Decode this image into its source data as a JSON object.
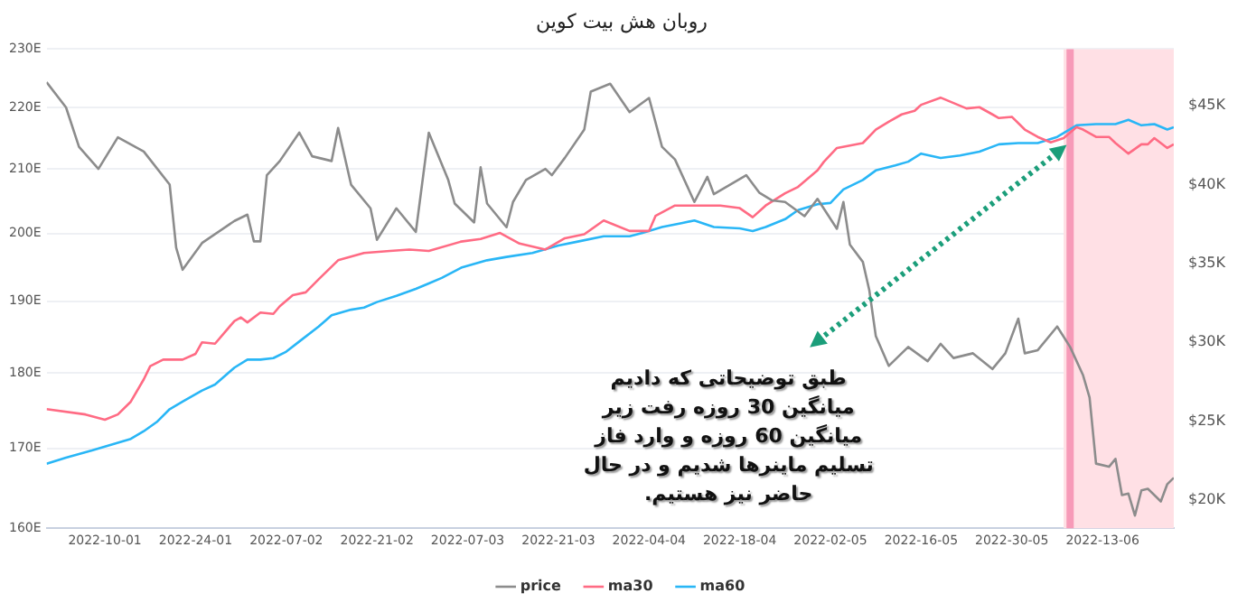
{
  "chart_data": {
    "type": "line",
    "title": "روبان هش بیت کوین",
    "xlim": [
      "2022-01-01",
      "2022-06-24"
    ],
    "xticks": [
      {
        "value": "2022-01-10",
        "label": "2022-10-01"
      },
      {
        "value": "2022-01-24",
        "label": "2022-24-01"
      },
      {
        "value": "2022-02-07",
        "label": "2022-07-02"
      },
      {
        "value": "2022-02-21",
        "label": "2022-21-02"
      },
      {
        "value": "2022-03-07",
        "label": "2022-07-03"
      },
      {
        "value": "2022-03-21",
        "label": "2022-21-03"
      },
      {
        "value": "2022-04-04",
        "label": "2022-04-04"
      },
      {
        "value": "2022-04-18",
        "label": "2022-18-04"
      },
      {
        "value": "2022-05-02",
        "label": "2022-02-05"
      },
      {
        "value": "2022-05-16",
        "label": "2022-16-05"
      },
      {
        "value": "2022-05-30",
        "label": "2022-30-05"
      },
      {
        "value": "2022-06-13",
        "label": "2022-13-06"
      }
    ],
    "ylim": [
      160,
      230
    ],
    "yticks": [
      {
        "value": 160,
        "label": "160E"
      },
      {
        "value": 170,
        "label": "170E"
      },
      {
        "value": 180,
        "label": "180E"
      },
      {
        "value": 190,
        "label": "190E"
      },
      {
        "value": 200,
        "label": "200E"
      },
      {
        "value": 210,
        "label": "210E"
      },
      {
        "value": 220,
        "label": "220E"
      },
      {
        "value": 230,
        "label": "230E"
      }
    ],
    "y2lim": [
      18200,
      48600
    ],
    "y2ticks": [
      {
        "value": 20000,
        "label": "$20K"
      },
      {
        "value": 25000,
        "label": "$25K"
      },
      {
        "value": 30000,
        "label": "$30K"
      },
      {
        "value": 35000,
        "label": "$35K"
      },
      {
        "value": 40000,
        "label": "$40K"
      },
      {
        "value": 45000,
        "label": "$45K"
      }
    ],
    "log": "y",
    "grid": "y",
    "legend": "bottom",
    "marker": "none",
    "line_style": "solid",
    "series": [
      {
        "name": "price",
        "axis": "y2",
        "color": "#8c8c8c",
        "x": [
          "2022-01-01",
          "2022-01-04",
          "2022-01-06",
          "2022-01-09",
          "2022-01-12",
          "2022-01-16",
          "2022-01-20",
          "2022-01-21",
          "2022-01-22",
          "2022-01-25",
          "2022-01-30",
          "2022-02-01",
          "2022-02-02",
          "2022-02-03",
          "2022-02-04",
          "2022-02-06",
          "2022-02-09",
          "2022-02-11",
          "2022-02-14",
          "2022-02-15",
          "2022-02-17",
          "2022-02-20",
          "2022-02-21",
          "2022-02-24",
          "2022-02-27",
          "2022-03-01",
          "2022-03-04",
          "2022-03-05",
          "2022-03-08",
          "2022-03-09",
          "2022-03-10",
          "2022-03-13",
          "2022-03-14",
          "2022-03-16",
          "2022-03-19",
          "2022-03-20",
          "2022-03-22",
          "2022-03-25",
          "2022-03-26",
          "2022-03-29",
          "2022-04-01",
          "2022-04-04",
          "2022-04-06",
          "2022-04-08",
          "2022-04-11",
          "2022-04-13",
          "2022-04-14",
          "2022-04-19",
          "2022-04-21",
          "2022-04-23",
          "2022-04-25",
          "2022-04-28",
          "2022-04-30",
          "2022-05-03",
          "2022-05-04",
          "2022-05-05",
          "2022-05-07",
          "2022-05-08",
          "2022-05-09",
          "2022-05-11",
          "2022-05-14",
          "2022-05-17",
          "2022-05-19",
          "2022-05-21",
          "2022-05-24",
          "2022-05-27",
          "2022-05-29",
          "2022-05-31",
          "2022-06-01",
          "2022-06-03",
          "2022-06-06",
          "2022-06-08",
          "2022-06-10",
          "2022-06-11",
          "2022-06-12",
          "2022-06-14",
          "2022-06-15",
          "2022-06-16",
          "2022-06-17",
          "2022-06-18",
          "2022-06-19",
          "2022-06-20",
          "2022-06-22",
          "2022-06-23",
          "2022-06-24"
        ],
        "values": [
          46500,
          44900,
          42400,
          41000,
          43000,
          42100,
          40000,
          36000,
          34600,
          36300,
          37700,
          38100,
          36400,
          36400,
          40600,
          41500,
          43300,
          41800,
          41500,
          43600,
          40000,
          38500,
          36500,
          38500,
          37000,
          43300,
          40300,
          38800,
          37600,
          41100,
          38800,
          37300,
          38900,
          40300,
          41000,
          40600,
          41700,
          43500,
          45900,
          46400,
          44600,
          45500,
          42400,
          41600,
          38900,
          40500,
          39400,
          40600,
          39500,
          39000,
          38900,
          38000,
          39100,
          37200,
          38900,
          36200,
          35100,
          33300,
          30400,
          28500,
          29700,
          28800,
          29900,
          29000,
          29300,
          28300,
          29300,
          31500,
          29300,
          29500,
          31000,
          29700,
          27900,
          26500,
          22300,
          22100,
          22600,
          20300,
          20400,
          19000,
          20600,
          20700,
          19900,
          21000,
          21400
        ]
      },
      {
        "name": "ma30",
        "color": "#ff6b84",
        "x": [
          "2022-01-01",
          "2022-01-07",
          "2022-01-10",
          "2022-01-12",
          "2022-01-14",
          "2022-01-16",
          "2022-01-17",
          "2022-01-19",
          "2022-01-22",
          "2022-01-24",
          "2022-01-25",
          "2022-01-27",
          "2022-01-30",
          "2022-01-31",
          "2022-02-01",
          "2022-02-03",
          "2022-02-05",
          "2022-02-06",
          "2022-02-08",
          "2022-02-10",
          "2022-02-12",
          "2022-02-15",
          "2022-02-19",
          "2022-02-23",
          "2022-02-26",
          "2022-03-01",
          "2022-03-06",
          "2022-03-09",
          "2022-03-12",
          "2022-03-15",
          "2022-03-19",
          "2022-03-22",
          "2022-03-25",
          "2022-03-28",
          "2022-04-01",
          "2022-04-04",
          "2022-04-05",
          "2022-04-08",
          "2022-04-11",
          "2022-04-15",
          "2022-04-18",
          "2022-04-20",
          "2022-04-22",
          "2022-04-25",
          "2022-04-27",
          "2022-04-30",
          "2022-05-01",
          "2022-05-03",
          "2022-05-05",
          "2022-05-07",
          "2022-05-09",
          "2022-05-11",
          "2022-05-13",
          "2022-05-15",
          "2022-05-16",
          "2022-05-19",
          "2022-05-21",
          "2022-05-23",
          "2022-05-25",
          "2022-05-27",
          "2022-05-28",
          "2022-05-30",
          "2022-06-01",
          "2022-06-03",
          "2022-06-05",
          "2022-06-07",
          "2022-06-09",
          "2022-06-10",
          "2022-06-12",
          "2022-06-14",
          "2022-06-15",
          "2022-06-17",
          "2022-06-19",
          "2022-06-20",
          "2022-06-21",
          "2022-06-23",
          "2022-06-24"
        ],
        "values": [
          175.1,
          174.4,
          173.7,
          174.4,
          176.1,
          179.1,
          180.9,
          181.8,
          181.8,
          182.6,
          184.2,
          184.0,
          187.2,
          187.7,
          187.0,
          188.4,
          188.2,
          189.3,
          190.9,
          191.3,
          193.2,
          196.0,
          197.1,
          197.4,
          197.6,
          197.4,
          198.8,
          199.2,
          200.1,
          198.5,
          197.6,
          199.3,
          199.9,
          202.0,
          200.4,
          200.4,
          202.7,
          204.3,
          204.3,
          204.3,
          203.9,
          202.5,
          204.3,
          206.2,
          207.2,
          209.8,
          211.2,
          213.4,
          213.8,
          214.2,
          216.4,
          217.7,
          218.9,
          219.5,
          220.5,
          221.7,
          220.8,
          219.9,
          220.1,
          218.9,
          218.3,
          218.5,
          216.4,
          215.2,
          214.3,
          215.0,
          216.8,
          216.4,
          215.2,
          215.2,
          214.2,
          212.5,
          214.0,
          214.0,
          215.0,
          213.4,
          214.0
        ]
      },
      {
        "name": "ma60",
        "color": "#29b6f6",
        "x": [
          "2022-01-01",
          "2022-01-04",
          "2022-01-08",
          "2022-01-10",
          "2022-01-12",
          "2022-01-14",
          "2022-01-16",
          "2022-01-18",
          "2022-01-20",
          "2022-01-22",
          "2022-01-25",
          "2022-01-27",
          "2022-01-30",
          "2022-02-01",
          "2022-02-03",
          "2022-02-05",
          "2022-02-07",
          "2022-02-09",
          "2022-02-12",
          "2022-02-14",
          "2022-02-17",
          "2022-02-19",
          "2022-02-21",
          "2022-02-24",
          "2022-02-27",
          "2022-03-01",
          "2022-03-03",
          "2022-03-06",
          "2022-03-10",
          "2022-03-13",
          "2022-03-17",
          "2022-03-21",
          "2022-03-24",
          "2022-03-28",
          "2022-04-01",
          "2022-04-03",
          "2022-04-06",
          "2022-04-09",
          "2022-04-11",
          "2022-04-14",
          "2022-04-18",
          "2022-04-20",
          "2022-04-22",
          "2022-04-25",
          "2022-04-27",
          "2022-04-30",
          "2022-05-02",
          "2022-05-04",
          "2022-05-07",
          "2022-05-09",
          "2022-05-12",
          "2022-05-14",
          "2022-05-16",
          "2022-05-19",
          "2022-05-22",
          "2022-05-25",
          "2022-05-28",
          "2022-05-31",
          "2022-06-03",
          "2022-06-06",
          "2022-06-09",
          "2022-06-12",
          "2022-06-15",
          "2022-06-17",
          "2022-06-19",
          "2022-06-21",
          "2022-06-23",
          "2022-06-24"
        ],
        "values": [
          168.0,
          168.8,
          169.7,
          170.2,
          170.7,
          171.2,
          172.2,
          173.4,
          175.1,
          176.1,
          177.6,
          178.4,
          180.7,
          181.8,
          181.8,
          182.0,
          182.9,
          184.3,
          186.4,
          188.0,
          188.8,
          189.1,
          189.9,
          190.8,
          191.8,
          192.6,
          193.4,
          194.9,
          196.0,
          196.5,
          197.1,
          198.2,
          198.8,
          199.6,
          199.6,
          200.1,
          201.0,
          201.6,
          202.0,
          201.0,
          200.8,
          200.4,
          201.0,
          202.2,
          203.6,
          204.5,
          204.7,
          206.8,
          208.3,
          209.8,
          210.6,
          211.2,
          212.5,
          211.8,
          212.2,
          212.8,
          214.0,
          214.2,
          214.2,
          215.2,
          217.1,
          217.3,
          217.3,
          218.0,
          217.1,
          217.3,
          216.4,
          216.8
        ]
      }
    ],
    "bands": [
      {
        "axis": "x",
        "from": "2022-06-07",
        "to": "2022-06-24",
        "color": "#ffe0e5"
      }
    ],
    "ref_lines": [
      {
        "axis": "x",
        "value": "2022-06-08",
        "color": "#f79ab8",
        "line_style": "solid"
      }
    ],
    "annotations": [
      "طبق توضیحاتی که دادیم\nمیانگین 30 روزه رفت زیر\nمیانگین 60 روزه و وارد فاز\nتسلیم ماینر‌ها شدیم و در حال\nحاضر نیز هستیم."
    ]
  }
}
